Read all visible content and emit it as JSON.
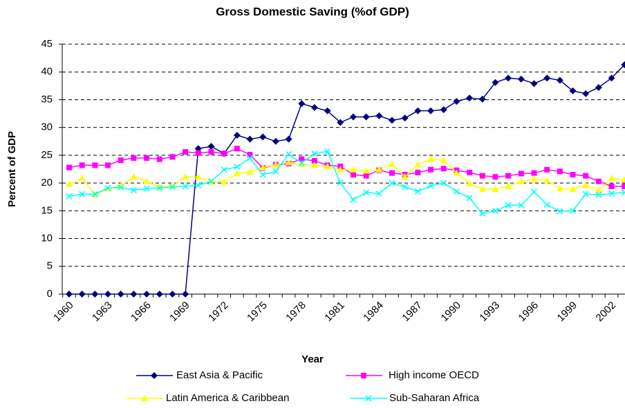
{
  "chart_data": {
    "type": "line",
    "title": "Gross Domestic Saving (%of GDP)",
    "x_label": "Year",
    "y_label": "Percent of GDP",
    "categories": [
      "1960",
      null,
      null,
      "1963",
      null,
      null,
      "1966",
      null,
      null,
      "1969",
      null,
      null,
      "1972",
      null,
      null,
      "1975",
      null,
      null,
      "1978",
      null,
      null,
      "1981",
      null,
      null,
      "1984",
      null,
      null,
      "1987",
      null,
      null,
      "1990",
      null,
      null,
      "1993",
      null,
      null,
      "1996",
      null,
      null,
      "1999",
      null,
      null,
      "2002",
      null
    ],
    "ylim": [
      0,
      45
    ],
    "yticks": [
      0,
      5,
      10,
      15,
      20,
      25,
      30,
      35,
      40,
      45
    ],
    "grid": true,
    "legend": "bottom",
    "series": [
      {
        "name": "East Asia & Pacific",
        "color": "#000080",
        "marker": "diamond",
        "values": [
          0,
          0,
          0,
          0,
          0,
          0,
          0,
          0,
          0,
          0,
          26.2,
          26.6,
          25.3,
          28.6,
          27.9,
          28.3,
          27.5,
          27.9,
          34.3,
          33.6,
          33.0,
          30.9,
          31.9,
          31.9,
          32.1,
          31.3,
          31.7,
          33.0,
          33.0,
          33.2,
          34.7,
          35.3,
          35.1,
          38.1,
          38.9,
          38.7,
          37.9,
          38.9,
          38.5,
          36.6,
          36.1,
          37.2,
          38.9,
          41.3
        ]
      },
      {
        "name": "High income OECD",
        "color": "#FF00FF",
        "marker": "square",
        "values": [
          22.8,
          23.2,
          23.2,
          23.2,
          24.1,
          24.5,
          24.5,
          24.3,
          24.7,
          25.6,
          25.4,
          25.6,
          25.3,
          26.2,
          25.1,
          22.7,
          23.3,
          23.5,
          24.3,
          24.0,
          23.2,
          23.0,
          21.5,
          21.3,
          22.3,
          21.8,
          21.5,
          21.9,
          22.4,
          22.6,
          22.3,
          21.9,
          21.3,
          21.1,
          21.3,
          21.7,
          21.8,
          22.4,
          22.1,
          21.5,
          21.3,
          20.3,
          19.4,
          19.4
        ]
      },
      {
        "name": "Latin America & Caribbean",
        "color": "#FFFF00",
        "marker": "triangle",
        "values": [
          19.8,
          20.9,
          17.9,
          19.0,
          19.5,
          21.1,
          20.3,
          19.3,
          19.5,
          21.1,
          21.1,
          20.2,
          20.2,
          21.7,
          22.0,
          22.8,
          23.3,
          23.7,
          23.4,
          23.2,
          23.0,
          22.4,
          22.4,
          22.2,
          22.4,
          23.4,
          21.1,
          23.3,
          24.3,
          24.1,
          21.8,
          19.9,
          18.9,
          18.9,
          19.4,
          20.3,
          20.7,
          20.5,
          19.0,
          18.9,
          19.6,
          18.7,
          20.9,
          20.6
        ]
      },
      {
        "name": "Sub-Saharan Africa",
        "color": "#00FFFF",
        "marker": "x",
        "values": [
          17.6,
          18.0,
          18.0,
          19.1,
          19.2,
          18.7,
          19.0,
          19.1,
          19.3,
          19.4,
          19.6,
          20.3,
          22.4,
          22.9,
          24.5,
          21.5,
          22.1,
          25.2,
          23.6,
          25.3,
          25.7,
          20.0,
          17.0,
          18.3,
          18.1,
          20.0,
          19.3,
          18.5,
          19.5,
          20.0,
          18.5,
          17.3,
          14.5,
          15.0,
          16.0,
          16.0,
          18.4,
          16.1,
          14.9,
          15.0,
          18.0,
          17.9,
          18.1,
          18.3
        ]
      }
    ]
  }
}
